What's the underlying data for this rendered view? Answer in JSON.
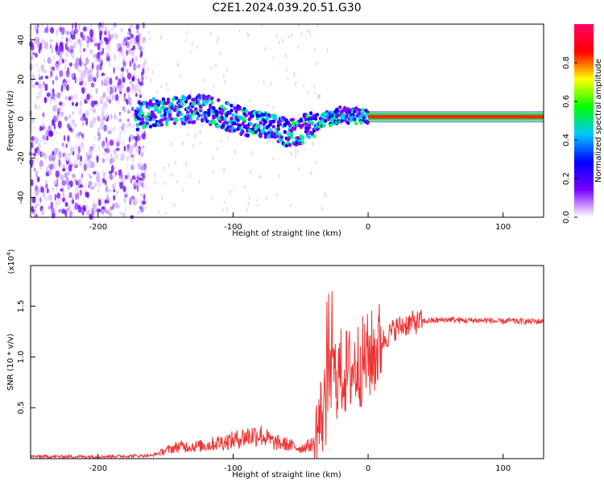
{
  "figure": {
    "title": "C2E1.2024.039.20.51.G30"
  },
  "chart_data": [
    {
      "type": "heatmap",
      "xlabel": "Height of straight line (km)",
      "ylabel": "Frequency (Hz)",
      "xlim": [
        -250,
        130
      ],
      "ylim": [
        -50,
        48
      ],
      "xticks": [
        -200,
        -100,
        0,
        100
      ],
      "yticks": [
        40,
        20,
        0,
        -20,
        -40
      ],
      "colorbar": {
        "label": "Normalized spectral amplitude",
        "range": [
          0,
          1
        ],
        "ticks": [
          0.0,
          0.2,
          0.4,
          0.6,
          0.8
        ],
        "colors": [
          "#ffffff",
          "#7a00ff",
          "#0000ff",
          "#00c8ff",
          "#00ff00",
          "#ffff00",
          "#ff0000",
          "#ff0066"
        ]
      },
      "features": {
        "noise_region_x": [
          -250,
          -165
        ],
        "trace": [
          [
            -170,
            2
          ],
          [
            -150,
            4
          ],
          [
            -120,
            5
          ],
          [
            -100,
            0
          ],
          [
            -80,
            -3
          ],
          [
            -60,
            -7
          ],
          [
            -50,
            -6
          ],
          [
            -40,
            -2
          ],
          [
            -30,
            0
          ],
          [
            -20,
            2
          ],
          [
            0,
            1
          ],
          [
            130,
            1
          ]
        ]
      }
    },
    {
      "type": "line",
      "xlabel": "Height of straight line (km)",
      "ylabel": "SNR (10 * v/v)",
      "multiplier": "(x10",
      "multiplier_exp": "4",
      "multiplier_close": ")",
      "xlim": [
        -250,
        130
      ],
      "ylim": [
        0,
        1.9
      ],
      "xticks": [
        -200,
        -100,
        0,
        100
      ],
      "yticks": [
        0.5,
        1.0,
        1.5
      ],
      "ytick_labels": [
        "0.5",
        "1.0",
        "1.5"
      ],
      "color": "#ee3333",
      "series": [
        {
          "x": [
            -250,
            -200,
            -160,
            -150,
            -140,
            -130,
            -120,
            -110,
            -100,
            -90,
            -80,
            -70,
            -60,
            -50,
            -40,
            -35,
            -30,
            -25,
            -20,
            -15,
            -10,
            -5,
            0,
            5,
            10,
            20,
            30,
            40,
            50,
            60,
            70,
            80,
            90,
            95,
            100,
            105,
            110,
            120,
            130
          ],
          "y": [
            0.02,
            0.02,
            0.03,
            0.08,
            0.12,
            0.12,
            0.13,
            0.16,
            0.18,
            0.22,
            0.24,
            0.16,
            0.14,
            0.1,
            0.15,
            0.4,
            0.6,
            0.8,
            0.85,
            0.85,
            0.9,
            0.95,
            1.0,
            1.05,
            1.15,
            1.28,
            1.33,
            1.35,
            1.36,
            1.37,
            1.36,
            1.36,
            1.36,
            1.35,
            1.35,
            1.36,
            1.35,
            1.35,
            1.35
          ]
        }
      ]
    }
  ]
}
